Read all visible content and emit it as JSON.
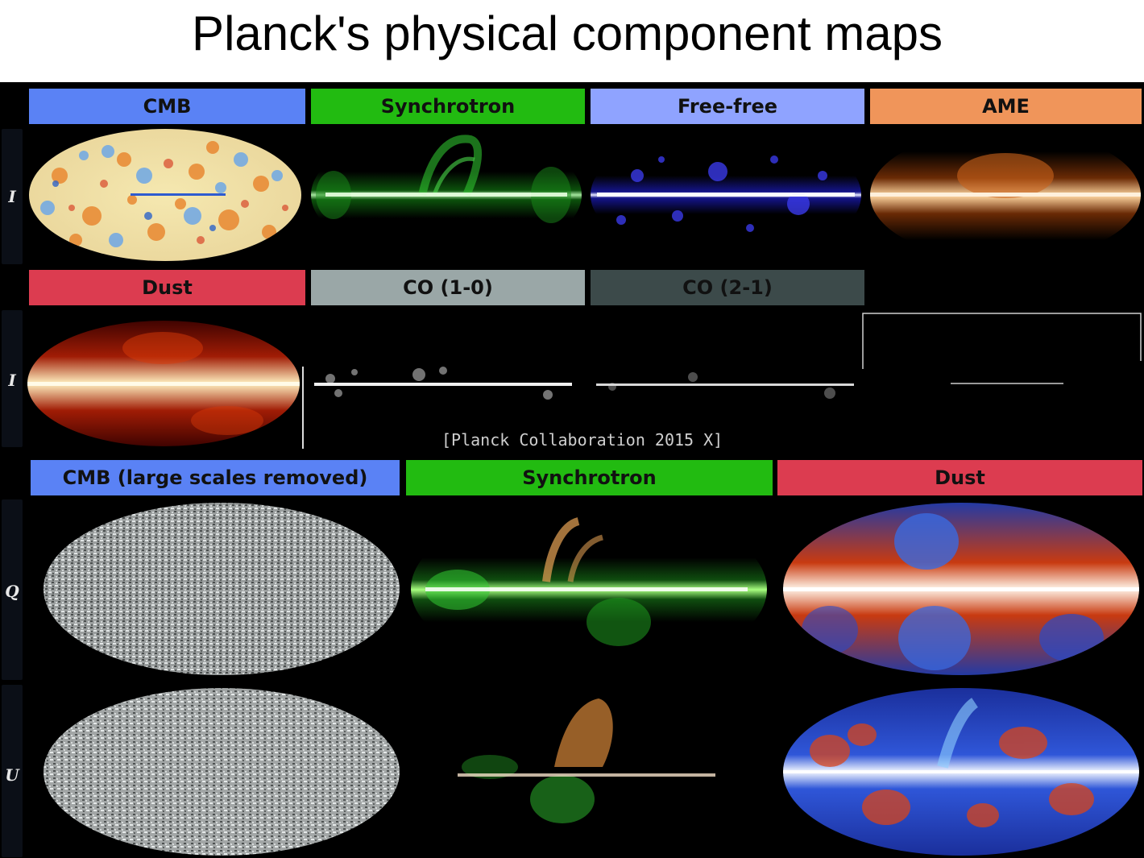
{
  "title": "Planck's physical component maps",
  "citation": "[Planck Collaboration 2015 X]",
  "stokes": {
    "I": "I",
    "Q": "Q",
    "U": "U"
  },
  "row1": {
    "labels": [
      "CMB",
      "Synchrotron",
      "Free-free",
      "AME"
    ],
    "colors": [
      "#5a82f5",
      "#22bb11",
      "#8fa3ff",
      "#f0955a"
    ]
  },
  "row2": {
    "labels": [
      "Dust",
      "CO (1-0)",
      "CO (2-1)"
    ],
    "colors": [
      "#dc3c50",
      "#9aa7a7",
      "#3c4a4a"
    ]
  },
  "row3": {
    "labels": [
      "CMB (large scales removed)",
      "Synchrotron",
      "Dust"
    ],
    "colors": [
      "#5a82f5",
      "#22bb11",
      "#dc3c50"
    ]
  }
}
